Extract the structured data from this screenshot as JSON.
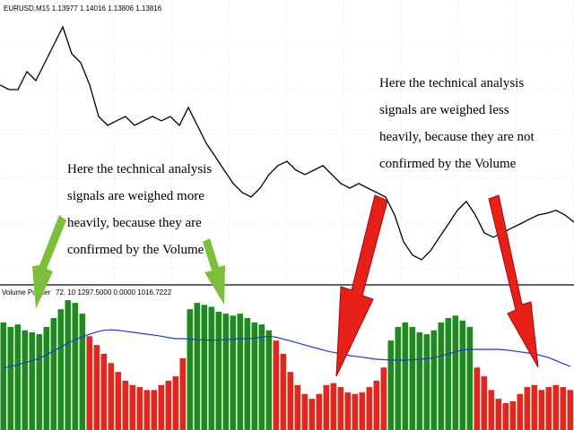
{
  "chart_data": [
    {
      "type": "line",
      "title": "EURUSD,M15  1.13977 1.14016 1.13806 1.13816",
      "color": "#000000",
      "ylim": [
        1.135,
        1.142
      ],
      "values": [
        1.14013,
        1.14,
        1.14,
        1.1405,
        1.14025,
        1.14075,
        1.14125,
        1.14175,
        1.141,
        1.14075,
        1.14013,
        1.13925,
        1.139,
        1.13913,
        1.13925,
        1.139,
        1.13913,
        1.13925,
        1.13913,
        1.13925,
        1.139,
        1.1395,
        1.139,
        1.1385,
        1.13813,
        1.13775,
        1.13738,
        1.13713,
        1.137,
        1.13725,
        1.13763,
        1.13788,
        1.138,
        1.13775,
        1.13763,
        1.13775,
        1.13788,
        1.13763,
        1.13738,
        1.13725,
        1.13738,
        1.13725,
        1.13713,
        1.137,
        1.1365,
        1.13575,
        1.13538,
        1.13525,
        1.1355,
        1.13588,
        1.13625,
        1.13663,
        1.13688,
        1.1365,
        1.136,
        1.13588,
        1.136,
        1.13613,
        1.13625,
        1.13638,
        1.1365,
        1.13655,
        1.13663,
        1.1365,
        1.1363
      ],
      "annotations": [
        {
          "lines": [
            "Here the technical analysis",
            "signals are weighed more",
            "heavily, because they are",
            "confirmed by the Volume"
          ]
        },
        {
          "lines": [
            "Here the technical analysis",
            "signals are weighed less",
            "heavily, because they are not",
            "confirmed by the Volume"
          ]
        }
      ]
    },
    {
      "type": "bar",
      "title": "Volume Pointer",
      "subtitle": "72. 10 1297.5000 0.0000 1016.7222",
      "ylim": [
        0,
        1400
      ],
      "series": [
        {
          "color": "#1f8a1f",
          "values": [
            1080,
            1035,
            1060,
            1000,
            980,
            960,
            1035,
            1125,
            1215,
            1308,
            1280,
            1170,
            null,
            null,
            null,
            null,
            null,
            null,
            null,
            null,
            null,
            null,
            null,
            null,
            null,
            null,
            1215,
            1280,
            1260,
            1240,
            1190,
            1170,
            1150,
            1170,
            1125,
            1080,
            1060,
            1000,
            null,
            null,
            null,
            null,
            null,
            null,
            null,
            null,
            null,
            null,
            null,
            null,
            null,
            null,
            null,
            null,
            895,
            1035,
            1080,
            1035,
            980,
            960,
            1000,
            1080,
            1125,
            1150,
            1100,
            1035,
            null,
            null,
            null,
            null,
            null,
            null,
            null,
            null,
            null,
            null,
            null,
            null,
            null,
            null
          ]
        },
        {
          "color": "#e0261f",
          "values": [
            null,
            null,
            null,
            null,
            null,
            null,
            null,
            null,
            null,
            null,
            null,
            null,
            940,
            850,
            760,
            665,
            575,
            485,
            440,
            420,
            390,
            390,
            440,
            485,
            530,
            715,
            null,
            null,
            null,
            null,
            null,
            null,
            null,
            null,
            null,
            null,
            null,
            null,
            895,
            760,
            575,
            440,
            350,
            300,
            350,
            440,
            460,
            420,
            365,
            350,
            365,
            420,
            485,
            620,
            null,
            null,
            null,
            null,
            null,
            null,
            null,
            null,
            null,
            null,
            null,
            null,
            620,
            530,
            390,
            300,
            256,
            275,
            350,
            420,
            440,
            390,
            420,
            440,
            420,
            390
          ]
        },
        {
          "type": "line",
          "color": "#2633d6",
          "values": [
            615,
            630,
            650,
            670,
            690,
            715,
            750,
            790,
            830,
            870,
            905,
            935,
            960,
            985,
            1000,
            1005,
            1000,
            990,
            980,
            970,
            960,
            950,
            940,
            925,
            915,
            915,
            910,
            905,
            900,
            900,
            900,
            905,
            910,
            915,
            915,
            920,
            930,
            940,
            930,
            910,
            890,
            870,
            850,
            830,
            810,
            790,
            775,
            760,
            745,
            735,
            725,
            715,
            705,
            700,
            695,
            695,
            695,
            700,
            705,
            710,
            720,
            740,
            760,
            780,
            800,
            805,
            805,
            805,
            805,
            805,
            800,
            790,
            780,
            770,
            760,
            740,
            720,
            690,
            660,
            630
          ]
        }
      ]
    }
  ]
}
